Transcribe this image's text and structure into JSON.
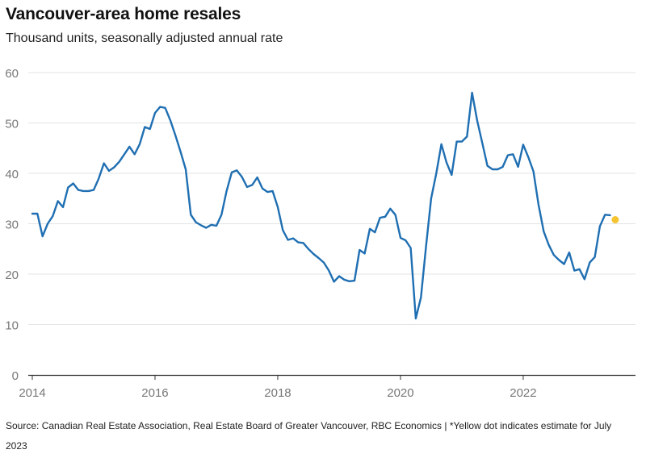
{
  "title": "Vancouver-area home resales",
  "subtitle": "Thousand units, seasonally adjusted annual rate",
  "source": "Source: Canadian Real Estate Association, Real Estate Board of Greater Vancouver, RBC Economics | *Yellow dot indicates estimate for July 2023",
  "colors": {
    "line": "#1f6fb2",
    "estimate": "#f5c431",
    "grid": "#e3e3e3",
    "axis": "#333333",
    "tick_text": "#777777"
  },
  "chart_data": {
    "type": "line",
    "title": "Vancouver-area home resales",
    "subtitle": "Thousand units, seasonally adjusted annual rate",
    "xlabel": "",
    "ylabel": "",
    "xlim": [
      2014.0,
      2023.83
    ],
    "ylim": [
      0,
      60
    ],
    "x_ticks": [
      2014,
      2016,
      2018,
      2020,
      2022
    ],
    "x_tick_labels": [
      "2014",
      "2016",
      "2018",
      "2020",
      "2022"
    ],
    "y_ticks": [
      0,
      10,
      20,
      30,
      40,
      50,
      60
    ],
    "y_tick_labels": [
      "0",
      "10",
      "20",
      "30",
      "40",
      "50",
      "60"
    ],
    "grid": true,
    "legend": "none",
    "series": [
      {
        "x_start": "2014-01",
        "frequency": "monthly",
        "values": [
          32.0,
          32.0,
          27.5,
          30.0,
          31.5,
          34.5,
          33.3,
          37.2,
          38.0,
          36.7,
          36.5,
          36.5,
          36.7,
          39.0,
          42.0,
          40.5,
          41.2,
          42.3,
          43.8,
          45.3,
          43.8,
          45.8,
          49.2,
          48.8,
          52.0,
          53.2,
          53.0,
          50.5,
          47.5,
          44.3,
          40.8,
          31.8,
          30.3,
          29.7,
          29.2,
          29.8,
          29.6,
          31.8,
          36.5,
          40.2,
          40.6,
          39.3,
          37.3,
          37.7,
          39.2,
          37.0,
          36.3,
          36.5,
          33.3,
          28.7,
          26.8,
          27.1,
          26.3,
          26.2,
          25.0,
          24.0,
          23.2,
          22.3,
          20.7,
          18.5,
          19.6,
          18.9,
          18.6,
          18.7,
          24.8,
          24.1,
          29.0,
          28.3,
          31.2,
          31.4,
          33.0,
          31.8,
          27.2,
          26.7,
          25.2,
          11.2,
          15.4,
          25.5,
          35.0,
          40.0,
          45.8,
          42.2,
          39.7,
          46.3,
          46.3,
          47.3,
          56.0,
          50.5,
          46.0,
          41.5,
          40.8,
          40.8,
          41.3,
          43.6,
          43.8,
          41.3,
          45.7,
          43.2,
          40.4,
          33.8,
          28.5,
          25.8,
          23.8,
          22.8,
          22.0,
          24.3,
          20.7,
          21.0,
          19.0,
          22.3,
          23.4,
          29.5,
          31.8,
          31.7
        ]
      }
    ],
    "estimate": {
      "x": "2023-07",
      "value": 30.8
    }
  }
}
